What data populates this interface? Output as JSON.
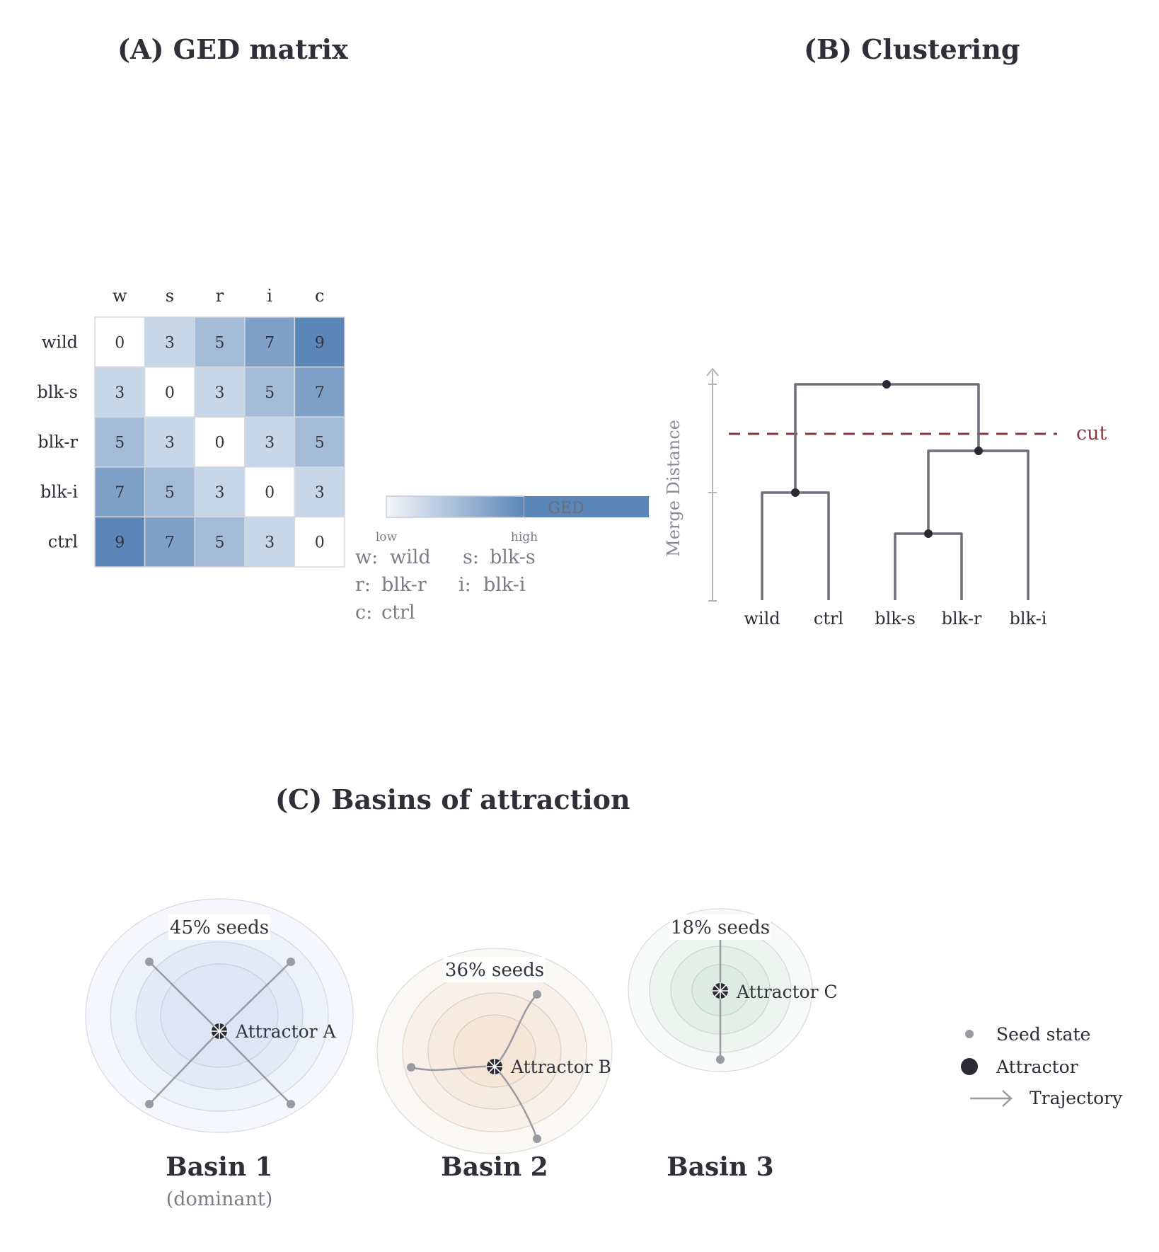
{
  "panels": {
    "a_title": "(A) GED matrix",
    "b_title": "(B) Clustering",
    "c_title": "(C) Basins of attraction"
  },
  "matrix": {
    "col_labels": [
      "w",
      "s",
      "r",
      "i",
      "c"
    ],
    "row_labels": [
      "wild",
      "blk-s",
      "blk-r",
      "blk-i",
      "ctrl"
    ],
    "values": [
      [
        0,
        3,
        5,
        7,
        9
      ],
      [
        3,
        0,
        3,
        5,
        7
      ],
      [
        5,
        3,
        0,
        3,
        5
      ],
      [
        7,
        5,
        3,
        0,
        3
      ],
      [
        9,
        7,
        5,
        3,
        0
      ]
    ],
    "color_low": "#ffffff",
    "color_high": "#5b86b8"
  },
  "colorbar": {
    "label": "GED",
    "low": "low",
    "high": "high"
  },
  "key": [
    {
      "abbr": "w:",
      "name": "wild"
    },
    {
      "abbr": "s:",
      "name": "blk-s"
    },
    {
      "abbr": "r:",
      "name": "blk-r"
    },
    {
      "abbr": "i:",
      "name": "blk-i"
    },
    {
      "abbr": "c:",
      "name": "ctrl"
    }
  ],
  "dendrogram": {
    "ylabel": "Merge Distance",
    "leaves": [
      "wild",
      "ctrl",
      "blk-s",
      "blk-r",
      "blk-i"
    ],
    "cut_label": "cut",
    "line_color": "#6e6e78",
    "cut_color": "#8a3a3c"
  },
  "basins": [
    {
      "name": "Basin 1",
      "sub": "(dominant)",
      "seeds": "45% seeds",
      "attractor": "Attractor A",
      "tint": "#dde6f6"
    },
    {
      "name": "Basin 2",
      "sub": "",
      "seeds": "36% seeds",
      "attractor": "Attractor B",
      "tint": "#f6e6d8"
    },
    {
      "name": "Basin 3",
      "sub": "",
      "seeds": "18% seeds",
      "attractor": "Attractor C",
      "tint": "#dcece2"
    }
  ],
  "legend": {
    "seed": "Seed state",
    "attractor": "Attractor",
    "trajectory": "Trajectory"
  }
}
